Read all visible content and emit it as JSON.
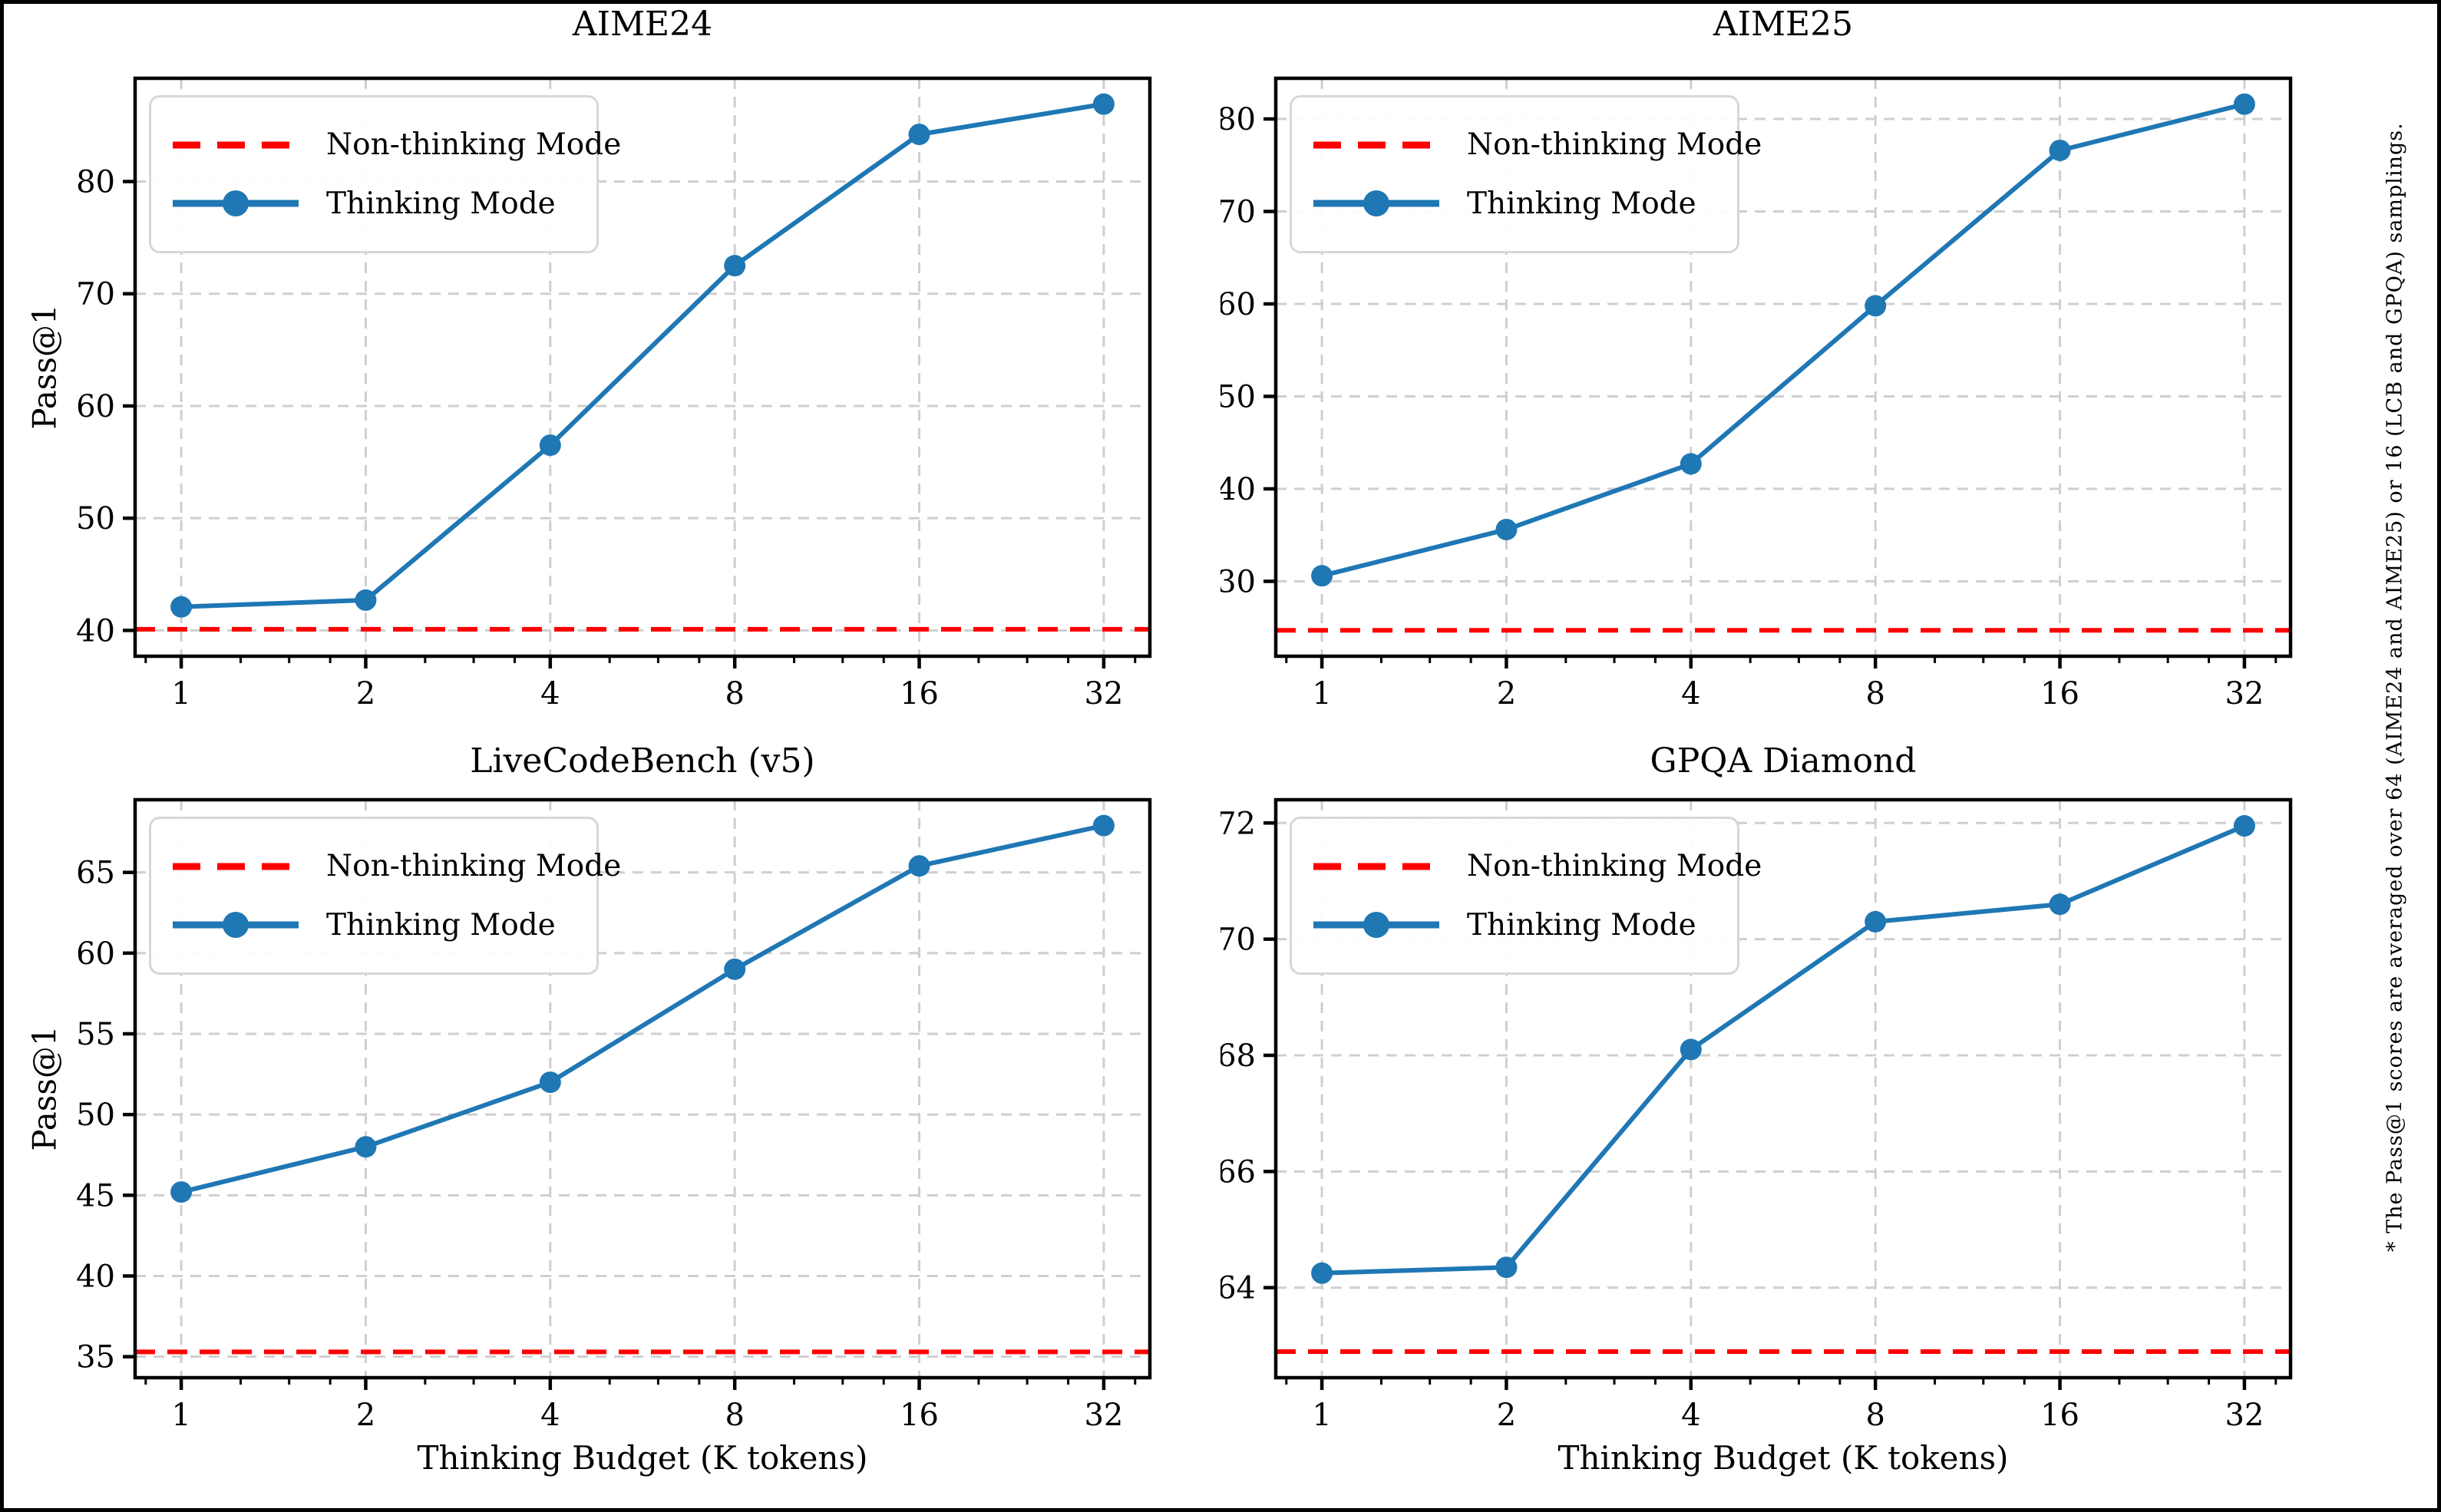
{
  "figure": {
    "footnote": "* The Pass@1 scores are averaged over 64 (AIME24 and AIME25) or 16 (LCB and GPQA) samplings.",
    "x_axis_label": "Thinking Budget (K tokens)",
    "y_axis_label": "Pass@1",
    "legend": {
      "non_thinking_label": "Non-thinking Mode",
      "thinking_label": "Thinking Mode"
    },
    "colors": {
      "thinking": "#1f77b4",
      "non_thinking": "#ff0000",
      "grid": "#cfcfcf",
      "spine": "#000000"
    }
  },
  "chart_data": [
    {
      "type": "line",
      "title": "AIME24",
      "xscale": "log2",
      "x": [
        1,
        2,
        4,
        8,
        16,
        32
      ],
      "x_tick_labels": [
        "1",
        "2",
        "4",
        "8",
        "16",
        "32"
      ],
      "series": [
        {
          "name": "Thinking Mode",
          "values": [
            42.1,
            42.7,
            56.5,
            72.5,
            84.2,
            86.9
          ]
        },
        {
          "name": "Non-thinking Mode",
          "type": "hline",
          "value": 40.1
        }
      ],
      "xlabel": "",
      "ylabel": "Pass@1",
      "yticks": [
        40,
        50,
        60,
        70,
        80
      ],
      "ylim": [
        37.7,
        89.2
      ],
      "grid": true,
      "legend_position": "upper left"
    },
    {
      "type": "line",
      "title": "AIME25",
      "xscale": "log2",
      "x": [
        1,
        2,
        4,
        8,
        16,
        32
      ],
      "x_tick_labels": [
        "1",
        "2",
        "4",
        "8",
        "16",
        "32"
      ],
      "series": [
        {
          "name": "Thinking Mode",
          "values": [
            30.6,
            35.6,
            42.7,
            59.8,
            76.6,
            81.6
          ]
        },
        {
          "name": "Non-thinking Mode",
          "type": "hline",
          "value": 24.7
        }
      ],
      "xlabel": "",
      "ylabel": "",
      "yticks": [
        30,
        40,
        50,
        60,
        70,
        80
      ],
      "ylim": [
        21.9,
        84.4
      ],
      "grid": true,
      "legend_position": "upper left"
    },
    {
      "type": "line",
      "title": "LiveCodeBench (v5)",
      "xscale": "log2",
      "x": [
        1,
        2,
        4,
        8,
        16,
        32
      ],
      "x_tick_labels": [
        "1",
        "2",
        "4",
        "8",
        "16",
        "32"
      ],
      "series": [
        {
          "name": "Thinking Mode",
          "values": [
            45.2,
            48.0,
            52.0,
            59.0,
            65.4,
            67.9
          ]
        },
        {
          "name": "Non-thinking Mode",
          "type": "hline",
          "value": 35.3
        }
      ],
      "xlabel": "Thinking Budget (K tokens)",
      "ylabel": "Pass@1",
      "yticks": [
        35,
        40,
        45,
        50,
        55,
        60,
        65
      ],
      "ylim": [
        33.7,
        69.5
      ],
      "grid": true,
      "legend_position": "upper left"
    },
    {
      "type": "line",
      "title": "GPQA Diamond",
      "xscale": "log2",
      "x": [
        1,
        2,
        4,
        8,
        16,
        32
      ],
      "x_tick_labels": [
        "1",
        "2",
        "4",
        "8",
        "16",
        "32"
      ],
      "series": [
        {
          "name": "Thinking Mode",
          "values": [
            64.25,
            64.35,
            68.1,
            70.3,
            70.6,
            71.95
          ]
        },
        {
          "name": "Non-thinking Mode",
          "type": "hline",
          "value": 62.9
        }
      ],
      "xlabel": "Thinking Budget (K tokens)",
      "ylabel": "",
      "yticks": [
        64,
        66,
        68,
        70,
        72
      ],
      "ylim": [
        62.45,
        72.4
      ],
      "grid": true,
      "legend_position": "upper left"
    }
  ]
}
